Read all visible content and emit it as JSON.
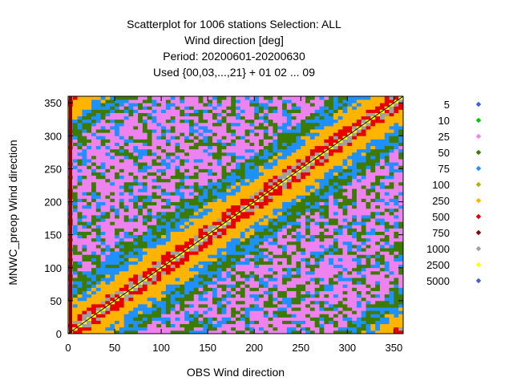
{
  "chart_data": {
    "type": "scatter",
    "title_lines": [
      "Scatterplot for 1006 stations Selection: ALL",
      "Wind direction [deg]",
      "Period: 20200601-20200630",
      "Used {00,03,...,21} + 01 02 ... 09"
    ],
    "xlabel": "OBS Wind direction",
    "ylabel": "MNWC_preop Wind direction",
    "xlim": [
      0,
      360
    ],
    "ylim": [
      0,
      360
    ],
    "xticks": [
      0,
      50,
      100,
      150,
      200,
      250,
      300,
      350
    ],
    "yticks": [
      0,
      50,
      100,
      150,
      200,
      250,
      300,
      350
    ],
    "legend_position": "right",
    "legend": [
      {
        "label": "5",
        "color": "#3b5fd9"
      },
      {
        "label": "10",
        "color": "#00c800"
      },
      {
        "label": "25",
        "color": "#ee82ee"
      },
      {
        "label": "50",
        "color": "#3d7a00"
      },
      {
        "label": "75",
        "color": "#1e90ff"
      },
      {
        "label": "100",
        "color": "#b4b400"
      },
      {
        "label": "250",
        "color": "#ffb400"
      },
      {
        "label": "500",
        "color": "#e60000"
      },
      {
        "label": "750",
        "color": "#8b0000"
      },
      {
        "label": "1000",
        "color": "#a0a0a0"
      },
      {
        "label": "2500",
        "color": "#ffff00"
      },
      {
        "label": "5000",
        "color": "#4060d0"
      }
    ],
    "reference_line": {
      "from": [
        0,
        0
      ],
      "to": [
        360,
        360
      ]
    }
  }
}
